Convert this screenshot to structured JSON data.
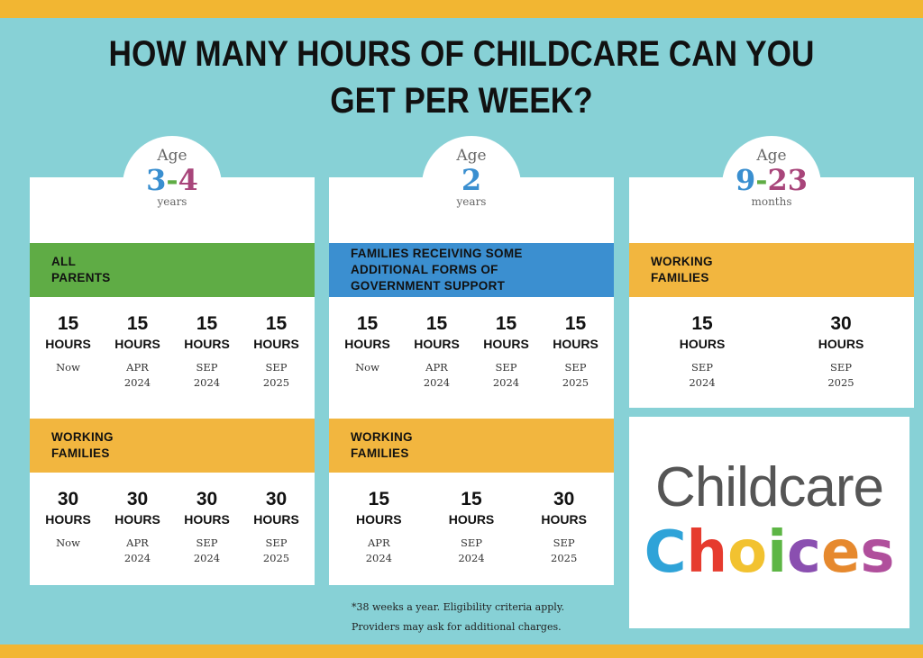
{
  "title": "HOW MANY HOURS OF CHILDCARE CAN YOU GET PER WEEK?",
  "cards": [
    {
      "age_label": "Age",
      "age_digits": [
        {
          "text": "3",
          "color": "#3a8fd0"
        },
        {
          "text": "-",
          "color": "#5fac45"
        },
        {
          "text": "4",
          "color": "#a8457a"
        }
      ],
      "age_unit": "years",
      "sections": [
        {
          "label": "ALL PARENTS",
          "color": "#5fac45",
          "items": [
            {
              "hours": 15,
              "unit": "HOURS",
              "month": "Now"
            },
            {
              "hours": 15,
              "unit": "HOURS",
              "month": "APR",
              "year": "2024"
            },
            {
              "hours": 15,
              "unit": "HOURS",
              "month": "SEP",
              "year": "2024"
            },
            {
              "hours": 15,
              "unit": "HOURS",
              "month": "SEP",
              "year": "2025"
            }
          ]
        },
        {
          "label": "WORKING FAMILIES",
          "color": "#f2b63f",
          "items": [
            {
              "hours": 30,
              "unit": "HOURS",
              "month": "Now"
            },
            {
              "hours": 30,
              "unit": "HOURS",
              "month": "APR",
              "year": "2024"
            },
            {
              "hours": 30,
              "unit": "HOURS",
              "month": "SEP",
              "year": "2024"
            },
            {
              "hours": 30,
              "unit": "HOURS",
              "month": "SEP",
              "year": "2025"
            }
          ]
        }
      ]
    },
    {
      "age_label": "Age",
      "age_digits": [
        {
          "text": "2",
          "color": "#3a8fd0"
        }
      ],
      "age_unit": "years",
      "sections": [
        {
          "label": "FAMILIES RECEIVING SOME ADDITIONAL FORMS OF GOVERNMENT SUPPORT",
          "color": "#3b8fd0",
          "items": [
            {
              "hours": 15,
              "unit": "HOURS",
              "month": "Now"
            },
            {
              "hours": 15,
              "unit": "HOURS",
              "month": "APR",
              "year": "2024"
            },
            {
              "hours": 15,
              "unit": "HOURS",
              "month": "SEP",
              "year": "2024"
            },
            {
              "hours": 15,
              "unit": "HOURS",
              "month": "SEP",
              "year": "2025"
            }
          ]
        },
        {
          "label": "WORKING FAMILIES",
          "color": "#f2b63f",
          "items": [
            {
              "hours": 15,
              "unit": "HOURS",
              "month": "APR",
              "year": "2024"
            },
            {
              "hours": 15,
              "unit": "HOURS",
              "month": "SEP",
              "year": "2024"
            },
            {
              "hours": 30,
              "unit": "HOURS",
              "month": "SEP",
              "year": "2025"
            }
          ]
        }
      ]
    },
    {
      "age_label": "Age",
      "age_digits": [
        {
          "text": "9",
          "color": "#3a8fd0"
        },
        {
          "text": "-",
          "color": "#5fac45"
        },
        {
          "text": "23",
          "color": "#a8457a"
        }
      ],
      "age_unit": "months",
      "sections": [
        {
          "label": "WORKING FAMILIES",
          "color": "#f2b63f",
          "items": [
            {
              "hours": 15,
              "unit": "HOURS",
              "month": "SEP",
              "year": "2024"
            },
            {
              "hours": 30,
              "unit": "HOURS",
              "month": "SEP",
              "year": "2025"
            }
          ]
        }
      ]
    }
  ],
  "logo": {
    "line1": "Childcare",
    "letters": [
      {
        "text": "C",
        "color": "#2fa3d8"
      },
      {
        "text": "h",
        "color": "#e63b2e"
      },
      {
        "text": "o",
        "color": "#f2c230"
      },
      {
        "text": "i",
        "color": "#5db645"
      },
      {
        "text": "c",
        "color": "#8a4fb0"
      },
      {
        "text": "e",
        "color": "#e6892e"
      },
      {
        "text": "s",
        "color": "#b04f9c"
      }
    ]
  },
  "footnote": [
    "*38 weeks a year. Eligibility criteria apply.",
    "Providers may ask for additional charges."
  ]
}
